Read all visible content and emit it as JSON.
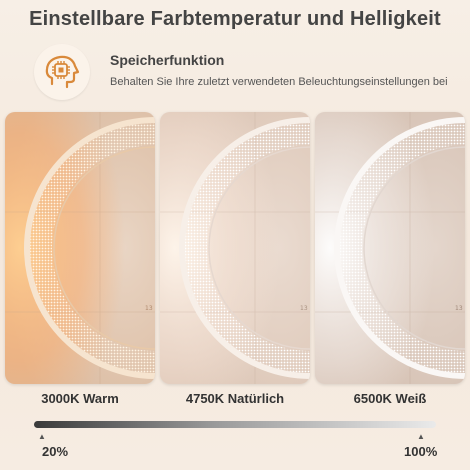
{
  "title": "Einstellbare Farbtemperatur und Helligkeit",
  "feature": {
    "icon": "brain-chip-icon",
    "title": "Speicherfunktion",
    "description": "Behalten Sie Ihre zuletzt verwendeten Beleuchtungseinstellungen bei"
  },
  "panels": [
    {
      "label": "3000K Warm",
      "glow": "#ffb070"
    },
    {
      "label": "4750K Natürlich",
      "glow": "#fff2e2"
    },
    {
      "label": "6500K Weiß",
      "glow": "#ffffff"
    }
  ],
  "brightness": {
    "min_label": "20%",
    "max_label": "100%"
  },
  "colors": {
    "accent": "#d9893a",
    "text": "#333333"
  }
}
